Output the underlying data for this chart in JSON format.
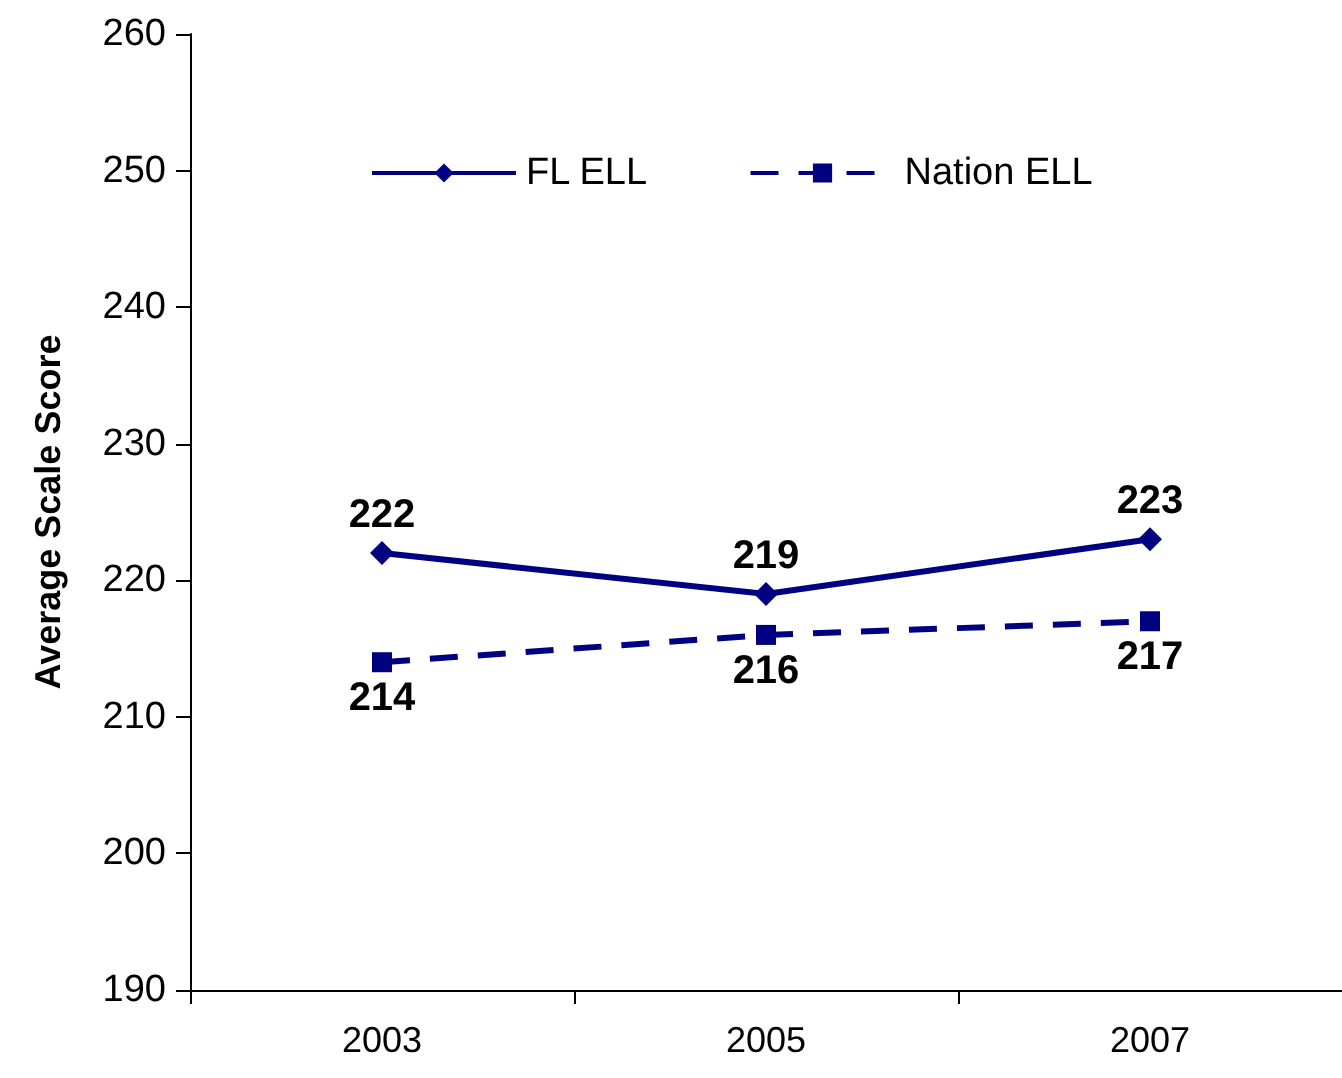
{
  "chart_data": {
    "type": "line",
    "ylabel": "Average Scale Score",
    "categories": [
      "2003",
      "2005",
      "2007"
    ],
    "series": [
      {
        "name": "FL ELL",
        "color": "#000080",
        "values": [
          222,
          219,
          223
        ],
        "marker": "diamond",
        "line_style": "solid"
      },
      {
        "name": "Nation ELL",
        "color": "#000080",
        "values": [
          214,
          216,
          217
        ],
        "marker": "square",
        "line_style": "dashed"
      }
    ],
    "ylim": [
      190,
      260
    ],
    "yticks": [
      190,
      200,
      210,
      220,
      230,
      240,
      250,
      260
    ],
    "legend": "top",
    "data_labels": true
  }
}
